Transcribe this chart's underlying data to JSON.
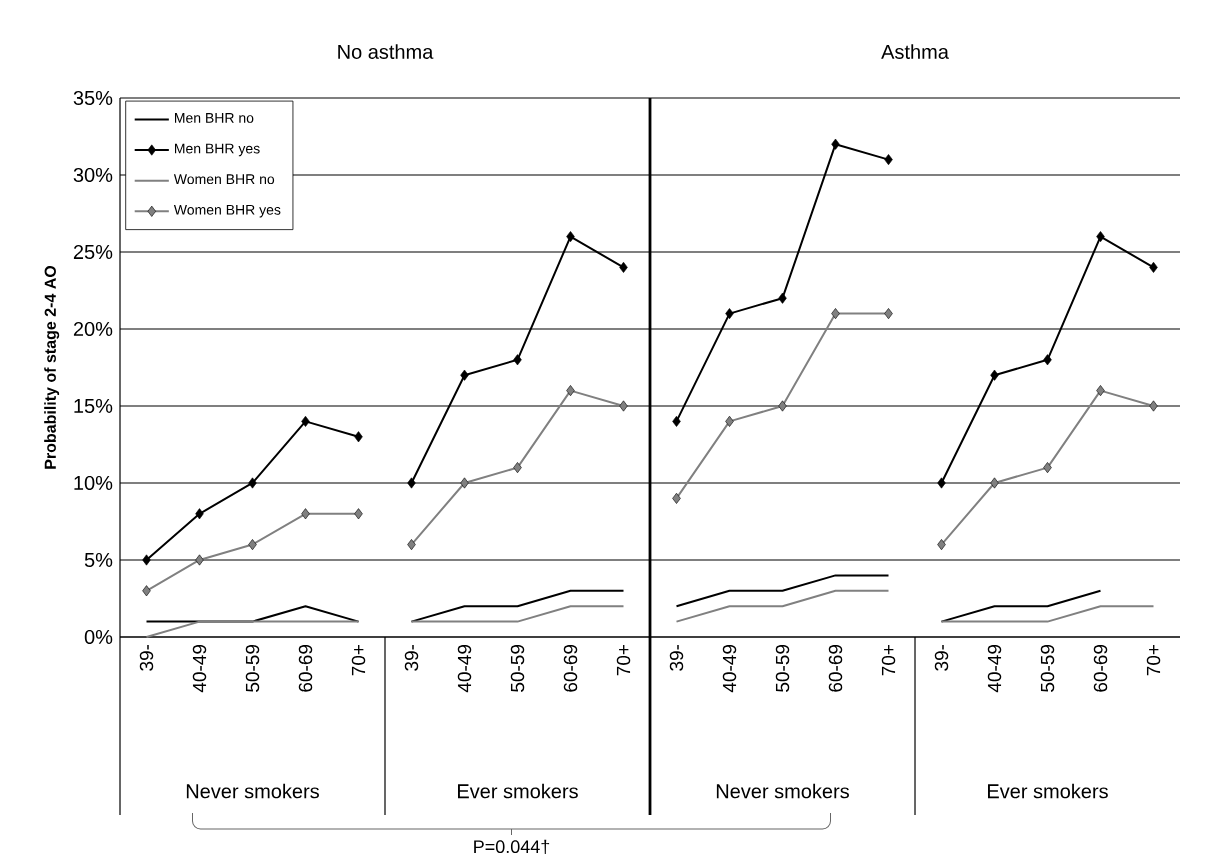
{
  "chart_data": [
    {
      "type": "line",
      "title": "No asthma",
      "ylabel": "Probability of stage 2-4 AO",
      "categories": [
        "39-",
        "40-49",
        "50-59",
        "60-69",
        "70+",
        "39-",
        "40-49",
        "50-59",
        "60-69",
        "70+"
      ],
      "series": [
        {
          "name": "Men BHR no",
          "color": "#000000",
          "marker": "none",
          "values": [
            1,
            1,
            1,
            2,
            1,
            1,
            2,
            2,
            3,
            3
          ]
        },
        {
          "name": "Men BHR yes",
          "color": "#000000",
          "marker": "diamond",
          "values": [
            5,
            8,
            10,
            14,
            13,
            10,
            17,
            18,
            26,
            24
          ]
        },
        {
          "name": "Women BHR no",
          "color": "#808080",
          "marker": "none",
          "values": [
            0,
            1,
            1,
            1,
            1,
            1,
            1,
            1,
            2,
            2
          ]
        },
        {
          "name": "Women BHR yes",
          "color": "#808080",
          "marker": "diamond",
          "values": [
            3,
            5,
            6,
            8,
            8,
            6,
            10,
            11,
            16,
            15
          ]
        }
      ],
      "ylim": [
        0,
        35
      ],
      "yticks": [
        {
          "value": 0,
          "label": "0%"
        },
        {
          "value": 5,
          "label": "5%"
        },
        {
          "value": 10,
          "label": "10%"
        },
        {
          "value": 15,
          "label": "15%"
        },
        {
          "value": 20,
          "label": "20%"
        },
        {
          "value": 25,
          "label": "25%"
        },
        {
          "value": 30,
          "label": "30%"
        },
        {
          "value": 35,
          "label": "35%"
        }
      ],
      "grid": "y",
      "legend": "top left",
      "annotations": [
        "Never smokers",
        "Ever smokers",
        "P=0.044†"
      ]
    },
    {
      "type": "line",
      "title": "Asthma",
      "categories": [
        "39-",
        "40-49",
        "50-59",
        "60-69",
        "70+",
        "39-",
        "40-49",
        "50-59",
        "60-69",
        "70+"
      ],
      "series": [
        {
          "color": "#000000",
          "marker": "none",
          "values": [
            2,
            3,
            3,
            4,
            4,
            1,
            2,
            2,
            3,
            null
          ]
        },
        {
          "color": "#000000",
          "marker": "diamond",
          "values": [
            14,
            21,
            22,
            32,
            31,
            10,
            17,
            18,
            26,
            24
          ]
        },
        {
          "color": "#808080",
          "marker": "none",
          "values": [
            1,
            2,
            2,
            3,
            3,
            1,
            1,
            1,
            2,
            2
          ]
        },
        {
          "color": "#808080",
          "marker": "diamond",
          "values": [
            9,
            14,
            15,
            21,
            21,
            6,
            10,
            11,
            16,
            15
          ]
        }
      ],
      "ylim": [
        0,
        35
      ],
      "yticks": [
        0,
        5,
        10,
        15,
        20,
        25,
        30,
        35
      ],
      "tick_labels": "x",
      "grid": "y",
      "annotations": [
        "Never smokers",
        "Ever smokers"
      ]
    }
  ]
}
